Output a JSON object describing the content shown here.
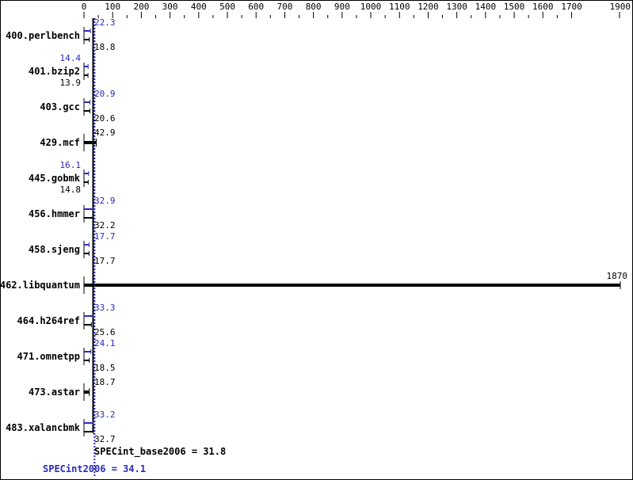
{
  "chart_data": {
    "type": "bar",
    "orientation": "horizontal",
    "x_ticks": [
      0,
      100,
      200,
      300,
      400,
      500,
      600,
      700,
      800,
      900,
      1000,
      1100,
      1200,
      1300,
      1400,
      1500,
      1600,
      1700,
      1900
    ],
    "xlim": [
      0,
      1870
    ],
    "categories": [
      "400.perlbench",
      "401.bzip2",
      "403.gcc",
      "429.mcf",
      "445.gobmk",
      "456.hmmer",
      "458.sjeng",
      "462.libquantum",
      "464.h264ref",
      "471.omnetpp",
      "473.astar",
      "483.xalancbmk"
    ],
    "series": [
      {
        "name": "SPECint_base2006",
        "values": [
          18.8,
          13.9,
          20.6,
          42.9,
          14.8,
          32.2,
          17.7,
          1870,
          25.6,
          18.5,
          18.7,
          32.7
        ],
        "color": "#000000"
      },
      {
        "name": "SPECint2006",
        "values": [
          22.3,
          14.4,
          20.9,
          null,
          16.1,
          32.9,
          17.7,
          null,
          33.3,
          24.1,
          null,
          33.2
        ],
        "color": "#2b2bb8"
      }
    ],
    "base_label": "SPECint_base2006 = 31.8",
    "peak_label": "SPECint2006 = 34.1",
    "base_mean": 31.8,
    "peak_mean": 34.1
  }
}
